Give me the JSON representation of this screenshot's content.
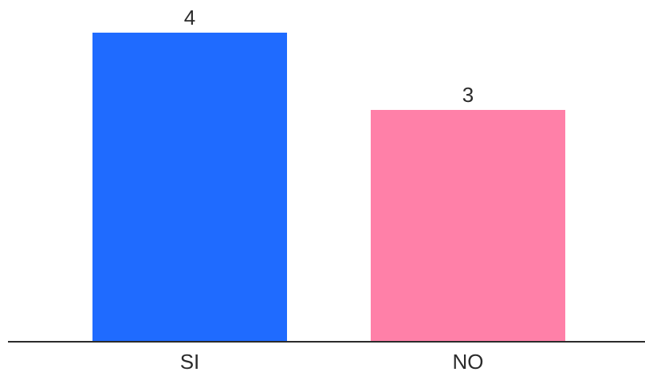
{
  "chart_data": {
    "type": "bar",
    "categories": [
      "SI",
      "NO"
    ],
    "values": [
      4,
      3
    ],
    "colors": [
      "#1f6bff",
      "#ff80a8"
    ],
    "ylim": [
      0,
      4
    ],
    "grid": false,
    "axis_color": "#2b2b2b"
  }
}
